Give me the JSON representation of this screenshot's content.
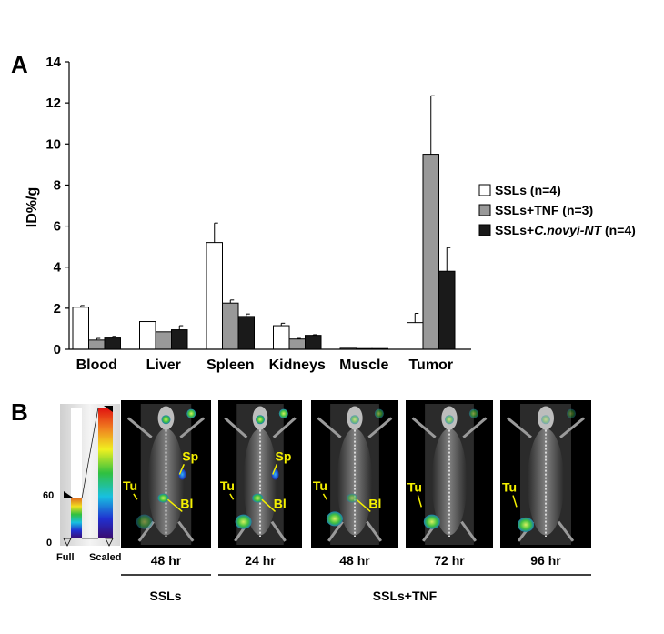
{
  "panel_a_label": "A",
  "panel_b_label": "B",
  "chart_data": {
    "type": "bar",
    "categories": [
      "Blood",
      "Liver",
      "Spleen",
      "Kidneys",
      "Muscle",
      "Tumor"
    ],
    "ylabel": "ID%/g",
    "ylim": [
      0,
      14
    ],
    "yticks": [
      0,
      2,
      4,
      6,
      8,
      10,
      12,
      14
    ],
    "series": [
      {
        "name": "SSLs (n=4)",
        "color": "#ffffff",
        "values": [
          2.05,
          1.35,
          5.2,
          1.15,
          0.05,
          1.3
        ],
        "errors": [
          0.08,
          0.0,
          0.95,
          0.12,
          0.0,
          0.45
        ]
      },
      {
        "name": "SSLs+TNF (n=3)",
        "color": "#999999",
        "values": [
          0.45,
          0.85,
          2.25,
          0.5,
          0.02,
          9.5
        ],
        "errors": [
          0.08,
          0.0,
          0.15,
          0.03,
          0.0,
          2.85
        ]
      },
      {
        "name": "SSLs+C.novyi-NT (n=4)",
        "color": "#1a1a1a",
        "values": [
          0.55,
          0.95,
          1.6,
          0.68,
          0.02,
          3.8
        ],
        "errors": [
          0.08,
          0.2,
          0.12,
          0.03,
          0.0,
          1.15
        ]
      }
    ],
    "legend": [
      {
        "prefix": "SSLs (n=4)",
        "italic": "",
        "suffix": ""
      },
      {
        "prefix": "SSLs+TNF (n=3)",
        "italic": "",
        "suffix": ""
      },
      {
        "prefix": "SSLs+",
        "italic": "C.novyi-NT",
        "suffix": " (n=4)"
      }
    ],
    "legend_position": "right"
  },
  "colorbar": {
    "tick_top": "60",
    "tick_bottom": "0",
    "label_full": "Full",
    "label_scaled": "Scaled"
  },
  "scans": [
    {
      "time": "48 hr",
      "labels": [
        "Sp",
        "Tu",
        "Bl"
      ]
    },
    {
      "time": "24 hr",
      "labels": [
        "Sp",
        "Tu",
        "Bl"
      ]
    },
    {
      "time": "48 hr",
      "labels": [
        "Tu",
        "Bl"
      ]
    },
    {
      "time": "72 hr",
      "labels": [
        "Tu"
      ]
    },
    {
      "time": "96 hr",
      "labels": [
        "Tu"
      ]
    }
  ],
  "groups": [
    {
      "name": "SSLs"
    },
    {
      "name": "SSLs+TNF"
    }
  ]
}
